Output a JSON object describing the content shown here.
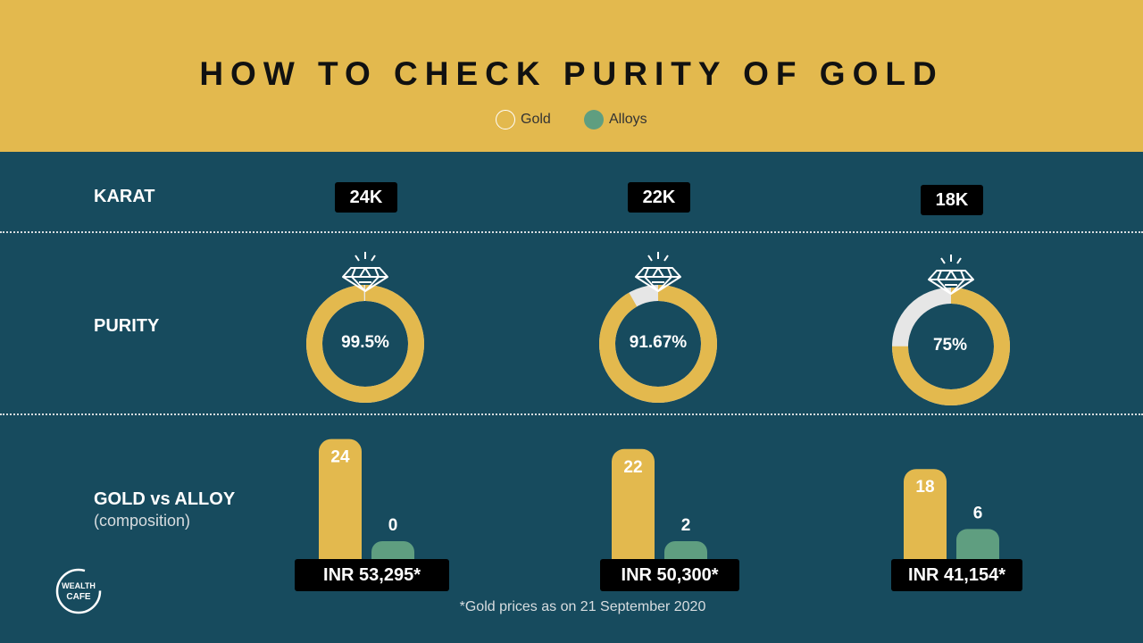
{
  "header": {
    "title": "HOW TO CHECK PURITY OF GOLD",
    "legend": [
      {
        "label": "Gold",
        "color": "#e3b94e"
      },
      {
        "label": "Alloys",
        "color": "#5f9e80"
      }
    ]
  },
  "rows": {
    "karat": "KARAT",
    "purity": "PURITY",
    "composition": "GOLD vs ALLOY",
    "composition_sub": "(composition)"
  },
  "colors": {
    "gold": "#e3b94e",
    "alloy": "#5f9e80",
    "ring_rest": "#e6e6e6",
    "background": "#174b5e",
    "header": "#e3b94e"
  },
  "chart_data": {
    "type": "bar",
    "title": "HOW TO CHECK PURITY OF GOLD",
    "categories": [
      "24K",
      "22K",
      "18K"
    ],
    "series": [
      {
        "name": "Gold",
        "values": [
          24,
          22,
          18
        ]
      },
      {
        "name": "Alloys",
        "values": [
          0,
          2,
          6
        ]
      }
    ],
    "purity_labels": [
      "99.5%",
      "91.67%",
      "75%"
    ],
    "purity_values": [
      99.5,
      91.67,
      75
    ],
    "prices": [
      "INR 53,295*",
      "INR 50,300*",
      "INR 41,154*"
    ]
  },
  "footnote": "*Gold prices as on 21 September 2020",
  "logo": {
    "text_top": "WEALTH",
    "text_bottom": "CAFE",
    "icon": "wealth-cafe-logo"
  }
}
